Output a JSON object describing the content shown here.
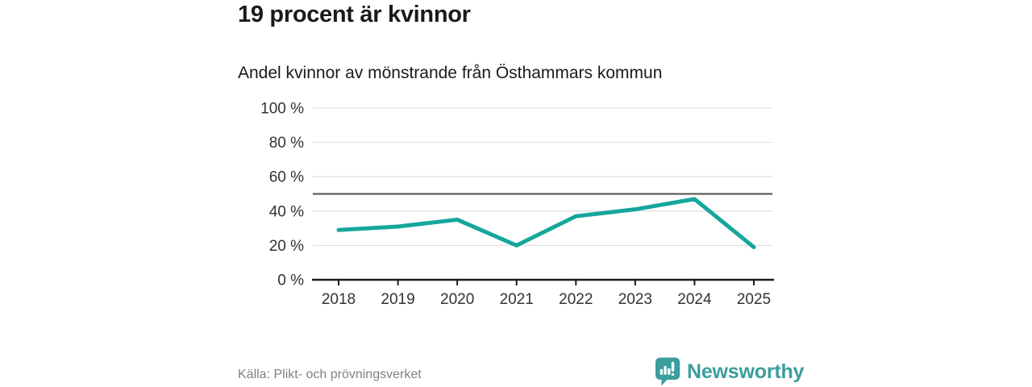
{
  "header": {
    "title": "19 procent är kvinnor",
    "subtitle": "Andel kvinnor av mönstrande från Östhammars kommun"
  },
  "chart_data": {
    "type": "line",
    "title": "19 procent är kvinnor",
    "subtitle": "Andel kvinnor av mönstrande från Östhammars kommun",
    "categories": [
      "2018",
      "2019",
      "2020",
      "2021",
      "2022",
      "2023",
      "2024",
      "2025"
    ],
    "series": [
      {
        "name": "Andel kvinnor av mönstrande",
        "values": [
          29,
          31,
          35,
          20,
          37,
          41,
          47,
          19
        ]
      }
    ],
    "unit": "%",
    "ylim": [
      0,
      100
    ],
    "yticks": [
      0,
      20,
      40,
      60,
      80,
      100
    ],
    "ytick_suffix": " %",
    "reference_line": {
      "value": 50
    },
    "grid": true,
    "legend": "none"
  },
  "footer": {
    "source": "Källa: Plikt- och prövningsverket",
    "brand": "Newsworthy"
  },
  "colors": {
    "accent_line": "#16a69c",
    "brand_teal": "#3a9e9c",
    "reference_line": "#4d4d4d",
    "gridline": "#e1e1e1",
    "axis": "#1a1a1a",
    "tick_text": "#333333",
    "muted_text": "#7f8285"
  }
}
